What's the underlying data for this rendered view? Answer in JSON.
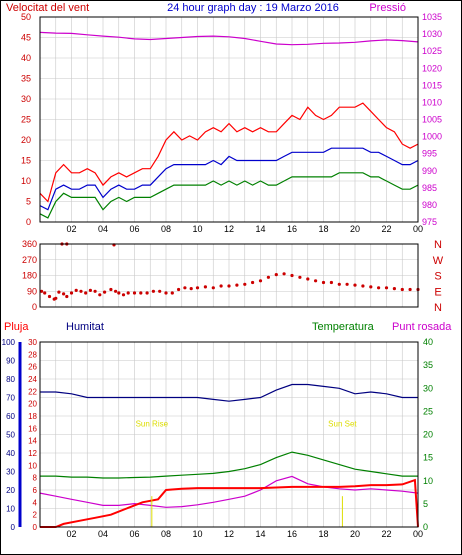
{
  "header": {
    "left_label": "Velocitat del vent",
    "title": "24 hour graph day : 19 Marzo 2016",
    "right_label": "Pressió"
  },
  "colors": {
    "bg": "#ffffff",
    "frame": "#000000",
    "grid": "#c8c8c8",
    "red": "#ff0000",
    "darkred": "#cc0000",
    "blue": "#0000cc",
    "navy": "#000080",
    "green": "#008000",
    "magenta": "#cc00cc",
    "yellow": "#dddd00"
  },
  "chart_data": [
    {
      "type": "line",
      "name": "wind-and-pressure",
      "x_ticks": [
        "02",
        "04",
        "06",
        "08",
        "10",
        "12",
        "14",
        "16",
        "18",
        "20",
        "22",
        "00"
      ],
      "ylim_left": [
        0,
        50
      ],
      "y_ticks_left": [
        "0",
        "5",
        "10",
        "15",
        "20",
        "25",
        "30",
        "35",
        "40",
        "45",
        "50"
      ],
      "ylim_right": [
        975,
        1035
      ],
      "y_ticks_right": [
        "975",
        "980",
        "985",
        "990",
        "995",
        "1000",
        "1005",
        "1010",
        "1015",
        "1020",
        "1025",
        "1030",
        "1035"
      ],
      "grid": true,
      "series": [
        {
          "color": "#ff0000",
          "axis": "left",
          "x": [
            0,
            0.5,
            1,
            1.5,
            2,
            2.5,
            3,
            3.5,
            4,
            4.5,
            5,
            5.5,
            6,
            6.5,
            7,
            7.5,
            8,
            8.5,
            9,
            9.5,
            10,
            10.5,
            11,
            11.5,
            12,
            12.5,
            13,
            13.5,
            14,
            14.5,
            15,
            15.5,
            16,
            16.5,
            17,
            17.5,
            18,
            18.5,
            19,
            19.5,
            20,
            20.5,
            21,
            21.5,
            22,
            22.5,
            23,
            23.5,
            24
          ],
          "y": [
            7,
            5,
            12,
            14,
            12,
            12,
            13,
            12,
            9,
            11,
            12,
            11,
            12,
            13,
            13,
            16,
            20,
            22,
            20,
            21,
            20,
            22,
            23,
            22,
            24,
            22,
            23,
            22,
            23,
            22,
            22,
            24,
            26,
            25,
            28,
            26,
            25,
            26,
            28,
            28,
            28,
            29,
            27,
            25,
            23,
            22,
            19,
            18,
            19
          ]
        },
        {
          "color": "#0000cc",
          "axis": "left",
          "x": [
            0,
            0.5,
            1,
            1.5,
            2,
            2.5,
            3,
            3.5,
            4,
            4.5,
            5,
            5.5,
            6,
            6.5,
            7,
            7.5,
            8,
            8.5,
            9,
            9.5,
            10,
            10.5,
            11,
            11.5,
            12,
            12.5,
            13,
            13.5,
            14,
            14.5,
            15,
            15.5,
            16,
            16.5,
            17,
            17.5,
            18,
            18.5,
            19,
            19.5,
            20,
            20.5,
            21,
            21.5,
            22,
            22.5,
            23,
            23.5,
            24
          ],
          "y": [
            4,
            3,
            8,
            9,
            8,
            8,
            9,
            9,
            6,
            8,
            9,
            8,
            8,
            9,
            9,
            11,
            13,
            14,
            14,
            14,
            14,
            14,
            15,
            14,
            16,
            15,
            15,
            15,
            15,
            15,
            15,
            16,
            17,
            17,
            17,
            17,
            17,
            18,
            18,
            18,
            18,
            18,
            17,
            17,
            16,
            15,
            14,
            14,
            15
          ]
        },
        {
          "color": "#008000",
          "axis": "left",
          "x": [
            0,
            0.5,
            1,
            1.5,
            2,
            2.5,
            3,
            3.5,
            4,
            4.5,
            5,
            5.5,
            6,
            6.5,
            7,
            7.5,
            8,
            8.5,
            9,
            9.5,
            10,
            10.5,
            11,
            11.5,
            12,
            12.5,
            13,
            13.5,
            14,
            14.5,
            15,
            15.5,
            16,
            16.5,
            17,
            17.5,
            18,
            18.5,
            19,
            19.5,
            20,
            20.5,
            21,
            21.5,
            22,
            22.5,
            23,
            23.5,
            24
          ],
          "y": [
            2,
            1,
            5,
            7,
            6,
            6,
            6,
            6,
            3,
            5,
            6,
            5,
            6,
            6,
            6,
            7,
            8,
            9,
            9,
            9,
            9,
            9,
            10,
            9,
            10,
            9,
            10,
            9,
            10,
            9,
            9,
            10,
            11,
            11,
            11,
            11,
            11,
            11,
            12,
            12,
            12,
            12,
            11,
            11,
            10,
            9,
            8,
            8,
            9
          ]
        },
        {
          "color": "#cc00cc",
          "axis": "right",
          "x": [
            0,
            1,
            2,
            3,
            4,
            5,
            6,
            7,
            8,
            9,
            10,
            11,
            12,
            13,
            14,
            15,
            16,
            17,
            18,
            19,
            20,
            21,
            22,
            23,
            24
          ],
          "y": [
            1030.5,
            1030.3,
            1030.2,
            1029.8,
            1029.4,
            1029.1,
            1028.6,
            1028.4,
            1028.7,
            1029.0,
            1029.3,
            1029.4,
            1029.2,
            1028.7,
            1027.9,
            1027.1,
            1026.9,
            1027.0,
            1027.3,
            1027.4,
            1027.6,
            1028.0,
            1028.3,
            1028.1,
            1027.7
          ]
        }
      ]
    },
    {
      "type": "scatter",
      "name": "wind-direction",
      "y_ticks": [
        "0",
        "90",
        "180",
        "270",
        "360"
      ],
      "ylim": [
        0,
        360
      ],
      "compass_labels": [
        "N",
        "W",
        "S",
        "E",
        "N"
      ],
      "series": [
        {
          "color": "#cc0000",
          "x": [
            0.1,
            0.3,
            0.6,
            0.9,
            1.0,
            1.2,
            1.5,
            1.7,
            2.0,
            2.3,
            2.6,
            2.9,
            3.2,
            3.5,
            3.8,
            4.1,
            4.5,
            4.8,
            5.0,
            5.3,
            5.6,
            6.0,
            6.4,
            6.8,
            7.2,
            7.6,
            8.0,
            8.4,
            8.8,
            9.2,
            9.6,
            10,
            10.5,
            11,
            11.5,
            12,
            12.5,
            13,
            13.5,
            14,
            14.5,
            15,
            15.5,
            16,
            16.5,
            17,
            17.5,
            18,
            18.5,
            19,
            19.5,
            20,
            20.5,
            21,
            21.5,
            22,
            22.5,
            23,
            23.5,
            24,
            1.4,
            1.7,
            4.7
          ],
          "y": [
            90,
            80,
            60,
            45,
            50,
            85,
            75,
            60,
            80,
            95,
            90,
            80,
            95,
            90,
            70,
            85,
            100,
            90,
            80,
            70,
            80,
            80,
            80,
            80,
            90,
            90,
            80,
            80,
            100,
            110,
            105,
            110,
            115,
            110,
            120,
            120,
            125,
            130,
            140,
            150,
            170,
            185,
            190,
            180,
            170,
            160,
            150,
            140,
            140,
            130,
            130,
            125,
            120,
            115,
            110,
            110,
            105,
            100,
            100,
            100,
            360,
            360,
            355
          ]
        }
      ]
    },
    {
      "type": "line",
      "name": "humidity-temperature-rain",
      "left_labels": [
        "Pluja",
        "Humitat"
      ],
      "right_labels": [
        "Temperatura",
        "Punt rosada"
      ],
      "ylim_rain": [
        0,
        30
      ],
      "y_ticks_rain": [
        "0",
        "2",
        "4",
        "6",
        "8",
        "10",
        "12",
        "14",
        "16",
        "18",
        "20",
        "22",
        "24",
        "26",
        "28",
        "30"
      ],
      "ylim_humidity": [
        0,
        100
      ],
      "y_ticks_humidity": [
        "0",
        "10",
        "20",
        "30",
        "40",
        "50",
        "60",
        "70",
        "80",
        "90",
        "100"
      ],
      "ylim_temp": [
        0,
        40
      ],
      "y_ticks_temp": [
        "0",
        "5",
        "10",
        "15",
        "20",
        "25",
        "30",
        "35",
        "40"
      ],
      "annotations": [
        {
          "text": "Sun Rise",
          "x": 7.1,
          "level": 16
        },
        {
          "text": "Sun Set",
          "x": 19.2,
          "level": 16
        }
      ],
      "series": [
        {
          "color": "#000080",
          "axis": "humidity",
          "x": [
            0,
            1,
            2,
            3,
            4,
            5,
            6,
            7,
            8,
            9,
            10,
            11,
            12,
            13,
            14,
            15,
            16,
            17,
            18,
            19,
            20,
            21,
            22,
            23,
            24
          ],
          "y": [
            73,
            73,
            72,
            70,
            70,
            70,
            70,
            70,
            70,
            70,
            70,
            69,
            68,
            69,
            70,
            74,
            77,
            77,
            76,
            75,
            72,
            73,
            72,
            70,
            70
          ]
        },
        {
          "color": "#008000",
          "axis": "temp",
          "x": [
            0,
            1,
            2,
            3,
            4,
            5,
            6,
            7,
            8,
            9,
            10,
            11,
            12,
            13,
            14,
            15,
            16,
            17,
            18,
            19,
            20,
            21,
            22,
            23,
            24
          ],
          "y": [
            11,
            11,
            10.8,
            10.8,
            10.6,
            10.6,
            10.7,
            10.8,
            11,
            11.2,
            11.4,
            11.6,
            12,
            12.6,
            13.5,
            15,
            16.2,
            15.5,
            14.5,
            13.5,
            12.5,
            12,
            11.5,
            11,
            11
          ]
        },
        {
          "color": "#cc00cc",
          "axis": "rain",
          "x": [
            0,
            1,
            2,
            3,
            4,
            5,
            6,
            7,
            8,
            9,
            10,
            11,
            12,
            13,
            14,
            15,
            16,
            17,
            18,
            19,
            20,
            21,
            22,
            23,
            24
          ],
          "y": [
            5.5,
            5,
            4.5,
            4,
            3.5,
            3.5,
            3.8,
            3.5,
            3.2,
            3.3,
            3.6,
            4,
            4.5,
            5,
            6,
            7.5,
            8.2,
            7,
            6.5,
            6.2,
            6,
            6.2,
            6,
            5.8,
            5.5
          ]
        },
        {
          "color": "#ff0000",
          "axis": "rain",
          "x": [
            0,
            1,
            1.5,
            2.5,
            3.5,
            4.5,
            5.5,
            6.5,
            7.5,
            8,
            9,
            10,
            11,
            12,
            13,
            14,
            15,
            16,
            17,
            18,
            19,
            20,
            21,
            22,
            23,
            23.8,
            24
          ],
          "y": [
            0,
            0,
            0.5,
            1,
            1.5,
            2,
            3,
            4,
            4.5,
            6,
            6.2,
            6.3,
            6.3,
            6.3,
            6.3,
            6.3,
            6.4,
            6.5,
            6.5,
            6.5,
            6.5,
            6.6,
            6.8,
            6.8,
            6.9,
            7.6,
            0
          ]
        }
      ]
    }
  ]
}
